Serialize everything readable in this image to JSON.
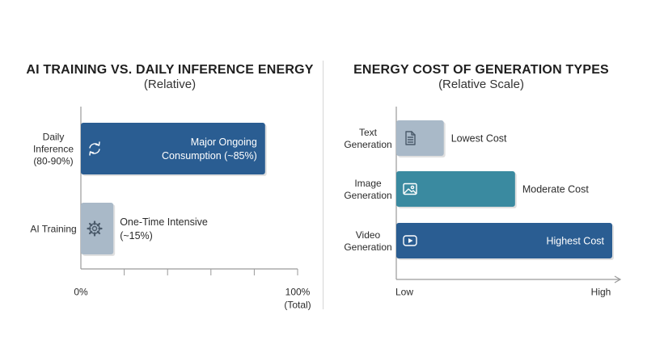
{
  "colors": {
    "bar_dark_blue": "#2a5d92",
    "bar_teal": "#3a8aa0",
    "bar_light_gray_blue": "#a9b9c8",
    "axis": "#9a9a9a"
  },
  "chart_data": [
    {
      "type": "bar",
      "orientation": "horizontal",
      "title": "AI TRAINING VS. DAILY INFERENCE ENERGY",
      "subtitle": "(Relative)",
      "categories": [
        "Daily Inference (80-90%)",
        "AI Training"
      ],
      "category_lines": [
        [
          "Daily",
          "Inference",
          "(80-90%)"
        ],
        [
          "AI Training"
        ]
      ],
      "values": [
        85,
        15
      ],
      "bar_labels": [
        [
          "Major Ongoing",
          "Consumption (~85%)"
        ],
        [
          "One-Time Intensive",
          "(~15%)"
        ]
      ],
      "icons": [
        "refresh-icon",
        "gear-icon"
      ],
      "xlim": [
        0,
        100
      ],
      "tick_labels": [
        [
          "0%"
        ],
        [
          "100%",
          "(Total)"
        ]
      ],
      "grid": false
    },
    {
      "type": "bar",
      "orientation": "horizontal",
      "title": "ENERGY COST OF GENERATION TYPES",
      "subtitle": "(Relative Scale)",
      "categories": [
        "Text Generation",
        "Image Generation",
        "Video Generation"
      ],
      "category_lines": [
        [
          "Text",
          "Generation"
        ],
        [
          "Image",
          "Generation"
        ],
        [
          "Video",
          "Generation"
        ]
      ],
      "values": [
        22,
        55,
        100
      ],
      "bar_labels": [
        [
          "Lowest Cost"
        ],
        [
          "Moderate Cost"
        ],
        [
          "Highest Cost"
        ]
      ],
      "icons": [
        "document-icon",
        "image-icon",
        "play-icon"
      ],
      "xlim": [
        0,
        100
      ],
      "tick_labels": [
        [
          "Low"
        ],
        [
          "High"
        ]
      ],
      "grid": false
    }
  ]
}
